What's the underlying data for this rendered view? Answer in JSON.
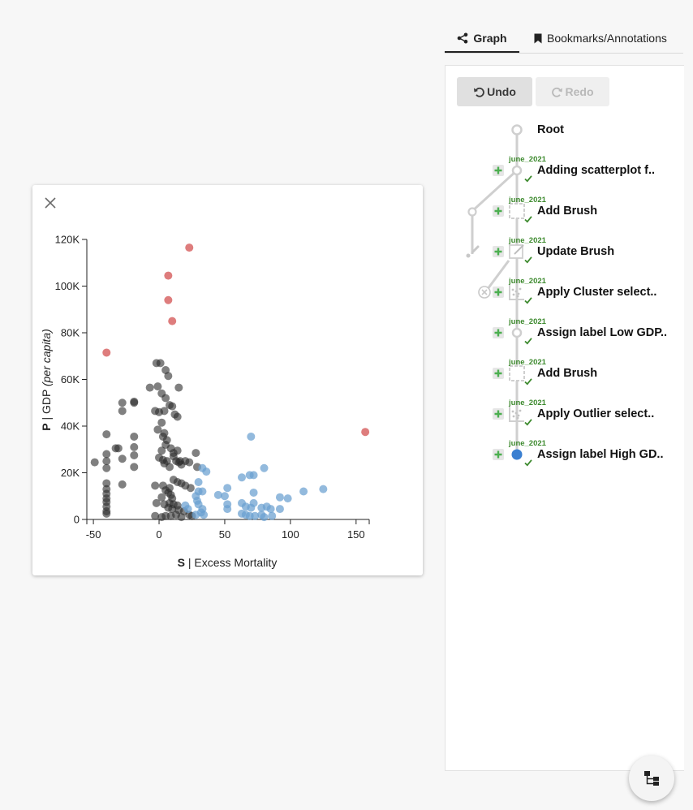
{
  "tabs": {
    "graph_label": "Graph",
    "bookmarks_label": "Bookmarks/Annotations"
  },
  "toolbar": {
    "undo_label": "Undo",
    "redo_label": "Redo"
  },
  "history": {
    "root_label": "Root",
    "nodes": [
      {
        "date": "june_2021",
        "label": "Adding scatterplot f..",
        "icon": "hollow-circle-icon"
      },
      {
        "date": "june_2021",
        "label": "Add Brush",
        "icon": "brush-square-icon"
      },
      {
        "date": "june_2021",
        "label": "Update Brush",
        "icon": "edit-icon"
      },
      {
        "date": "june_2021",
        "label": "Apply Cluster select..",
        "icon": "cluster-select-icon"
      },
      {
        "date": "june_2021",
        "label": "Assign label Low GDP..",
        "icon": "hollow-circle-icon"
      },
      {
        "date": "june_2021",
        "label": "Add Brush",
        "icon": "brush-square-icon"
      },
      {
        "date": "june_2021",
        "label": "Apply Outlier select..",
        "icon": "outlier-select-icon"
      },
      {
        "date": "june_2021",
        "label": "Assign label High GD..",
        "icon": "current-node-icon"
      }
    ]
  },
  "colors": {
    "outlier": "#dc7676",
    "cluster_black": "#2b2b2b",
    "cluster_blue": "#6a9fd0",
    "current_node": "#3a7fd1",
    "check_green": "#3d8a2e"
  },
  "chart_data": {
    "type": "scatter",
    "xlabel_bold": "S",
    "xlabel_rest": " | Excess Mortality",
    "ylabel_bold": "P",
    "ylabel_rest": " | GDP ",
    "ylabel_italic": "(per capita)",
    "xlim": [
      -55,
      160
    ],
    "ylim": [
      0,
      120000
    ],
    "x_ticks": [
      -50,
      0,
      50,
      100,
      150
    ],
    "x_tick_labels": [
      "-50",
      "0",
      "50",
      "100",
      "150"
    ],
    "y_ticks": [
      0,
      20000,
      40000,
      60000,
      80000,
      100000,
      120000
    ],
    "y_tick_labels": [
      "0",
      "20K",
      "40K",
      "60K",
      "80K",
      "100K",
      "120K"
    ],
    "series": [
      {
        "group": "outlier",
        "points": [
          [
            -40,
            71500
          ],
          [
            23,
            116500
          ],
          [
            7,
            104500
          ],
          [
            7,
            94000
          ],
          [
            10,
            85000
          ],
          [
            157,
            37500
          ]
        ]
      },
      {
        "group": "cluster_black",
        "points": [
          [
            -49,
            24500
          ],
          [
            -40,
            36500
          ],
          [
            -40,
            28000
          ],
          [
            -40,
            25000
          ],
          [
            -40,
            22000
          ],
          [
            -40,
            15500
          ],
          [
            -40,
            13000
          ],
          [
            -40,
            11000
          ],
          [
            -40,
            9000
          ],
          [
            -40,
            7500
          ],
          [
            -40,
            5500
          ],
          [
            -40,
            3500
          ],
          [
            -40,
            2500
          ],
          [
            -33,
            30500
          ],
          [
            -31,
            30500
          ],
          [
            -28,
            50000
          ],
          [
            -28,
            46500
          ],
          [
            -28,
            26000
          ],
          [
            -28,
            15000
          ],
          [
            -19,
            50000
          ],
          [
            -19,
            50500
          ],
          [
            -19,
            35500
          ],
          [
            -19,
            31000
          ],
          [
            -19,
            27500
          ],
          [
            -19,
            22500
          ],
          [
            -7,
            56500
          ],
          [
            -2,
            67000
          ],
          [
            1,
            67000
          ],
          [
            -1,
            57000
          ],
          [
            2,
            54000
          ],
          [
            -3,
            46500
          ],
          [
            5,
            64000
          ],
          [
            7,
            61500
          ],
          [
            5,
            52000
          ],
          [
            8,
            49000
          ],
          [
            10,
            48500
          ],
          [
            0,
            46000
          ],
          [
            4,
            46500
          ],
          [
            12,
            45000
          ],
          [
            14,
            44000
          ],
          [
            15,
            56500
          ],
          [
            2,
            41500
          ],
          [
            -1,
            38500
          ],
          [
            4,
            37000
          ],
          [
            3,
            35500
          ],
          [
            6,
            34000
          ],
          [
            5,
            32000
          ],
          [
            2,
            29500
          ],
          [
            9,
            30500
          ],
          [
            11,
            28500
          ],
          [
            14,
            29500
          ],
          [
            11,
            27000
          ],
          [
            0,
            26500
          ],
          [
            3,
            25500
          ],
          [
            6,
            25000
          ],
          [
            4,
            24000
          ],
          [
            8,
            22500
          ],
          [
            13,
            25000
          ],
          [
            15,
            24500
          ],
          [
            16,
            25000
          ],
          [
            23,
            24500
          ],
          [
            17,
            23500
          ],
          [
            20,
            25000
          ],
          [
            28,
            28500
          ],
          [
            29,
            22500
          ],
          [
            -3,
            14500
          ],
          [
            3,
            14500
          ],
          [
            8,
            13500
          ],
          [
            11,
            17000
          ],
          [
            14,
            16000
          ],
          [
            17,
            15500
          ],
          [
            20,
            14500
          ],
          [
            24,
            13500
          ],
          [
            5,
            12500
          ],
          [
            7,
            11500
          ],
          [
            9,
            10500
          ],
          [
            2,
            9500
          ],
          [
            10,
            9000
          ],
          [
            -2,
            7000
          ],
          [
            4,
            6500
          ],
          [
            8,
            7000
          ],
          [
            11,
            6500
          ],
          [
            14,
            6000
          ],
          [
            7,
            5000
          ],
          [
            10,
            4500
          ],
          [
            15,
            4000
          ],
          [
            19,
            3500
          ],
          [
            5,
            1500
          ],
          [
            2,
            1000
          ],
          [
            -3,
            1500
          ],
          [
            9,
            1500
          ],
          [
            13,
            2000
          ],
          [
            17,
            1000
          ],
          [
            23,
            2000
          ],
          [
            25,
            1500
          ]
        ]
      },
      {
        "group": "cluster_blue",
        "points": [
          [
            70,
            35500
          ],
          [
            36,
            20500
          ],
          [
            33,
            22000
          ],
          [
            30,
            16000
          ],
          [
            30,
            12000
          ],
          [
            33,
            12000
          ],
          [
            28,
            10000
          ],
          [
            29,
            8000
          ],
          [
            30,
            6500
          ],
          [
            33,
            4500
          ],
          [
            32,
            3000
          ],
          [
            34,
            2000
          ],
          [
            28,
            2000
          ],
          [
            20,
            6000
          ],
          [
            22,
            4500
          ],
          [
            45,
            10500
          ],
          [
            50,
            10000
          ],
          [
            52,
            13500
          ],
          [
            52,
            6500
          ],
          [
            52,
            4500
          ],
          [
            63,
            18000
          ],
          [
            69,
            19000
          ],
          [
            72,
            19000
          ],
          [
            80,
            22000
          ],
          [
            63,
            7000
          ],
          [
            66,
            5500
          ],
          [
            70,
            5000
          ],
          [
            72,
            7000
          ],
          [
            72,
            11500
          ],
          [
            78,
            5000
          ],
          [
            82,
            5500
          ],
          [
            85,
            4500
          ],
          [
            92,
            9500
          ],
          [
            98,
            9000
          ],
          [
            92,
            4500
          ],
          [
            110,
            12000
          ],
          [
            125,
            13000
          ],
          [
            63,
            2500
          ],
          [
            66,
            2000
          ],
          [
            69,
            1500
          ],
          [
            73,
            1500
          ],
          [
            78,
            2000
          ],
          [
            80,
            1000
          ],
          [
            86,
            1500
          ]
        ]
      }
    ]
  }
}
